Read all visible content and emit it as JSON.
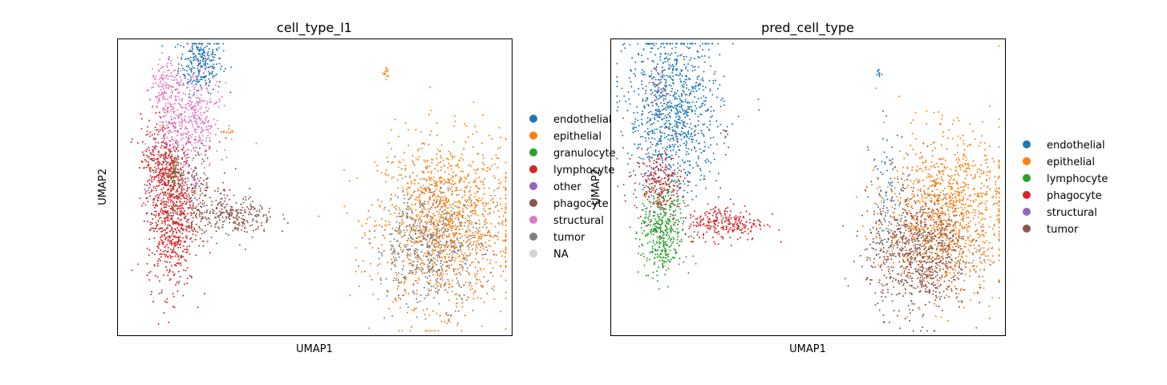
{
  "chart_data": [
    {
      "type": "scatter",
      "title": "cell_type_l1",
      "xlabel": "UMAP1",
      "ylabel": "UMAP2",
      "legend_position": "right",
      "series": [
        {
          "name": "endothelial",
          "color": "#1f77b4",
          "clusters": [
            {
              "cx": 0.21,
              "cy": 0.92,
              "sx": 0.028,
              "sy": 0.05,
              "n": 260
            }
          ]
        },
        {
          "name": "epithelial",
          "color": "#ff7f0e",
          "clusters": [
            {
              "cx": 0.83,
              "cy": 0.38,
              "sx": 0.085,
              "sy": 0.14,
              "n": 1300
            },
            {
              "cx": 0.68,
              "cy": 0.88,
              "sx": 0.004,
              "sy": 0.012,
              "n": 14
            },
            {
              "cx": 0.28,
              "cy": 0.69,
              "sx": 0.01,
              "sy": 0.005,
              "n": 10
            }
          ]
        },
        {
          "name": "granulocyte",
          "color": "#2ca02c",
          "clusters": [
            {
              "cx": 0.14,
              "cy": 0.55,
              "sx": 0.01,
              "sy": 0.03,
              "n": 40
            }
          ]
        },
        {
          "name": "lymphocyte",
          "color": "#d62728",
          "clusters": [
            {
              "cx": 0.135,
              "cy": 0.4,
              "sx": 0.03,
              "sy": 0.12,
              "n": 700
            },
            {
              "cx": 0.11,
              "cy": 0.6,
              "sx": 0.025,
              "sy": 0.07,
              "n": 250
            }
          ]
        },
        {
          "name": "other",
          "color": "#9467bd",
          "clusters": [
            {
              "cx": 0.14,
              "cy": 0.6,
              "sx": 0.05,
              "sy": 0.1,
              "n": 50
            }
          ]
        },
        {
          "name": "phagocyte",
          "color": "#8c564b",
          "clusters": [
            {
              "cx": 0.29,
              "cy": 0.4,
              "sx": 0.055,
              "sy": 0.035,
              "n": 280
            },
            {
              "cx": 0.18,
              "cy": 0.52,
              "sx": 0.04,
              "sy": 0.07,
              "n": 200
            }
          ]
        },
        {
          "name": "structural",
          "color": "#e377c2",
          "clusters": [
            {
              "cx": 0.18,
              "cy": 0.73,
              "sx": 0.04,
              "sy": 0.09,
              "n": 420
            },
            {
              "cx": 0.12,
              "cy": 0.83,
              "sx": 0.015,
              "sy": 0.05,
              "n": 120
            }
          ]
        },
        {
          "name": "tumor",
          "color": "#7f7f7f",
          "clusters": [
            {
              "cx": 0.79,
              "cy": 0.3,
              "sx": 0.07,
              "sy": 0.1,
              "n": 600
            }
          ]
        },
        {
          "name": "NA",
          "color": "#d3d3d3",
          "clusters": []
        }
      ]
    },
    {
      "type": "scatter",
      "title": "pred_cell_type",
      "xlabel": "UMAP1",
      "ylabel": "UMAP2",
      "legend_position": "right",
      "series": [
        {
          "name": "endothelial",
          "color": "#1f77b4",
          "clusters": [
            {
              "cx": 0.16,
              "cy": 0.75,
              "sx": 0.06,
              "sy": 0.14,
              "n": 1000
            },
            {
              "cx": 0.68,
              "cy": 0.88,
              "sx": 0.004,
              "sy": 0.012,
              "n": 10
            },
            {
              "cx": 0.7,
              "cy": 0.5,
              "sx": 0.02,
              "sy": 0.1,
              "n": 70
            }
          ]
        },
        {
          "name": "epithelial",
          "color": "#ff7f0e",
          "clusters": [
            {
              "cx": 0.85,
              "cy": 0.42,
              "sx": 0.075,
              "sy": 0.13,
              "n": 1100
            }
          ]
        },
        {
          "name": "lymphocyte",
          "color": "#2ca02c",
          "clusters": [
            {
              "cx": 0.13,
              "cy": 0.35,
              "sx": 0.028,
              "sy": 0.08,
              "n": 420
            }
          ]
        },
        {
          "name": "phagocyte",
          "color": "#d62728",
          "clusters": [
            {
              "cx": 0.29,
              "cy": 0.38,
              "sx": 0.05,
              "sy": 0.03,
              "n": 260
            },
            {
              "cx": 0.12,
              "cy": 0.52,
              "sx": 0.03,
              "sy": 0.05,
              "n": 200
            }
          ]
        },
        {
          "name": "structural",
          "color": "#9467bd",
          "clusters": [
            {
              "cx": 0.12,
              "cy": 0.84,
              "sx": 0.01,
              "sy": 0.04,
              "n": 40
            }
          ]
        },
        {
          "name": "tumor",
          "color": "#8c564b",
          "clusters": [
            {
              "cx": 0.78,
              "cy": 0.28,
              "sx": 0.065,
              "sy": 0.1,
              "n": 900
            },
            {
              "cx": 0.29,
              "cy": 0.69,
              "sx": 0.008,
              "sy": 0.005,
              "n": 6
            }
          ]
        }
      ]
    }
  ]
}
